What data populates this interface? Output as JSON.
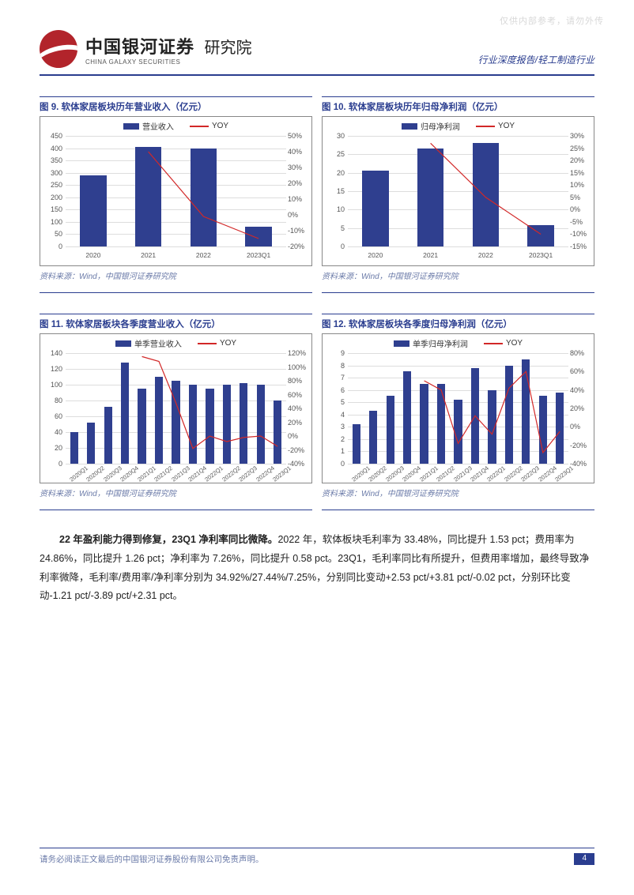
{
  "watermark": "仅供内部参考，请勿外传",
  "header": {
    "company_cn": "中国银河证券",
    "company_en": "CHINA GALAXY SECURITIES",
    "institute": "研究院",
    "breadcrumb": "行业深度报告/轻工制造行业"
  },
  "colors": {
    "primary_blue": "#2a3d8f",
    "bar_fill": "#2f3f8f",
    "line_red": "#d22828",
    "border_gray": "#888888",
    "grid_gray": "#dddddd",
    "text_gray": "#555555",
    "source_color": "#6a7aa8"
  },
  "charts": [
    {
      "id": "c9",
      "title": "图 9. 软体家居板块历年营业收入（亿元）",
      "legend_bar": "营业收入",
      "legend_line": "YOY",
      "categories": [
        "2020",
        "2021",
        "2022",
        "2023Q1"
      ],
      "bar_values": [
        290,
        405,
        398,
        80
      ],
      "y_left_max": 450,
      "y_left_step": 50,
      "y_left_min": 0,
      "line_values": [
        null,
        40,
        -1,
        -15
      ],
      "y_right_max": 50,
      "y_right_min": -20,
      "y_right_step": 10,
      "source": "资料来源：Wind，中国银河证券研究院",
      "rot_x": false
    },
    {
      "id": "c10",
      "title": "图 10. 软体家居板块历年归母净利润（亿元）",
      "legend_bar": "归母净利润",
      "legend_line": "YOY",
      "categories": [
        "2020",
        "2021",
        "2022",
        "2023Q1"
      ],
      "bar_values": [
        20.5,
        26.5,
        28,
        5.8
      ],
      "y_left_max": 30,
      "y_left_step": 5,
      "y_left_min": 0,
      "line_values": [
        null,
        27,
        5,
        -10
      ],
      "y_right_max": 30,
      "y_right_min": -15,
      "y_right_step": 5,
      "source": "资料来源：Wind，中国银河证券研究院",
      "rot_x": false
    },
    {
      "id": "c11",
      "title": "图 11. 软体家居板块各季度营业收入（亿元）",
      "legend_bar": "单季营业收入",
      "legend_line": "YOY",
      "categories": [
        "2020Q1",
        "2020Q2",
        "2020Q3",
        "2020Q4",
        "2021Q1",
        "2021Q2",
        "2021Q3",
        "2021Q4",
        "2022Q1",
        "2022Q2",
        "2022Q3",
        "2022Q4",
        "2023Q1"
      ],
      "bar_values": [
        40,
        52,
        72,
        128,
        95,
        110,
        105,
        100,
        95,
        100,
        102,
        100,
        80
      ],
      "y_left_max": 140,
      "y_left_step": 20,
      "y_left_min": 0,
      "line_values": [
        null,
        null,
        null,
        null,
        115,
        108,
        48,
        -18,
        0,
        -8,
        -2,
        0,
        -15
      ],
      "y_right_max": 120,
      "y_right_min": -40,
      "y_right_step": 20,
      "source": "资料来源：Wind，中国银河证券研究院",
      "rot_x": true
    },
    {
      "id": "c12",
      "title": "图 12. 软体家居板块各季度归母净利润（亿元）",
      "legend_bar": "单季归母净利润",
      "legend_line": "YOY",
      "categories": [
        "2020Q1",
        "2020Q2",
        "2020Q3",
        "2020Q4",
        "2021Q1",
        "2021Q2",
        "2021Q3",
        "2021Q4",
        "2022Q1",
        "2022Q2",
        "2022Q3",
        "2022Q4",
        "2023Q1"
      ],
      "bar_values": [
        3.2,
        4.3,
        5.5,
        7.5,
        6.5,
        6.5,
        5.2,
        7.8,
        6,
        8.0,
        8.5,
        5.5,
        5.8
      ],
      "y_left_max": 9,
      "y_left_step": 1,
      "y_left_min": 0,
      "line_values": [
        null,
        null,
        null,
        null,
        50,
        40,
        -18,
        12,
        -8,
        42,
        60,
        -28,
        -5
      ],
      "y_right_max": 80,
      "y_right_min": -40,
      "y_right_step": 20,
      "source": "资料来源：Wind，中国银河证券研究院",
      "rot_x": true
    }
  ],
  "body": {
    "lead_bold": "22 年盈利能力得到修复，23Q1 净利率同比微降。",
    "text": "2022 年，软体板块毛利率为 33.48%，同比提升 1.53 pct；费用率为 24.86%，同比提升 1.26 pct；净利率为 7.26%，同比提升 0.58 pct。23Q1，毛利率同比有所提升，但费用率增加，最终导致净利率微降，毛利率/费用率/净利率分别为 34.92%/27.44%/7.25%，分别同比变动+2.53 pct/+3.81 pct/-0.02 pct，分别环比变动-1.21 pct/-3.89 pct/+2.31 pct。"
  },
  "footer": {
    "disclaimer": "请务必阅读正文最后的中国银河证券股份有限公司免责声明。",
    "page": "4"
  }
}
